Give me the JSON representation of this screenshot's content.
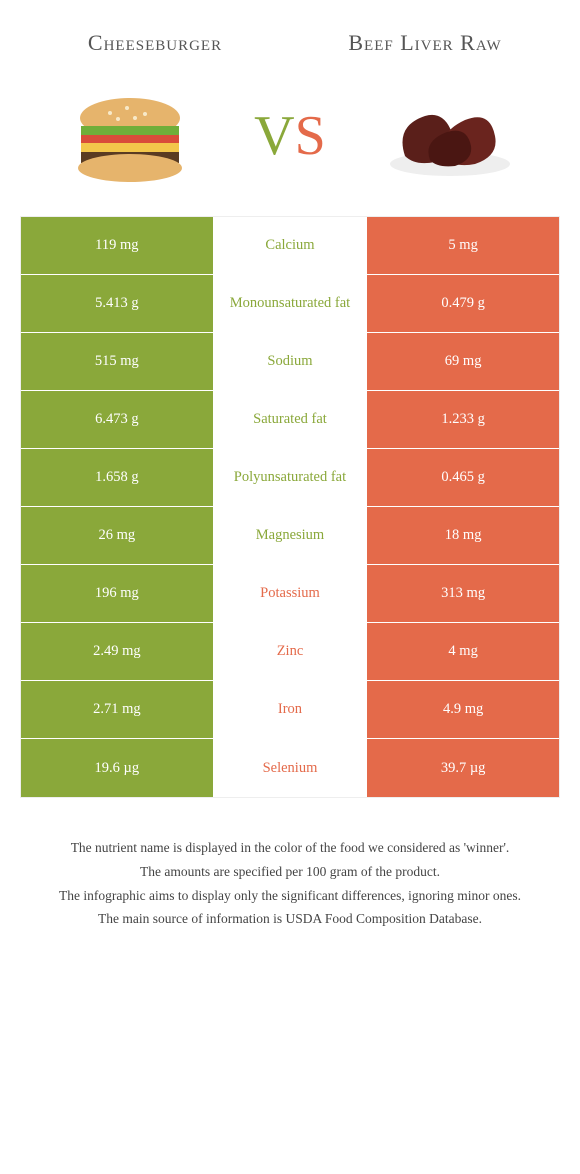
{
  "colors": {
    "left": "#8aa83a",
    "right": "#e46a4a",
    "mid_bg": "#ffffff",
    "row_border": "#ffffff",
    "text_dark": "#333333"
  },
  "header": {
    "left_title": "Cheeseburger",
    "right_title": "Beef Liver Raw",
    "vs_v": "V",
    "vs_s": "S"
  },
  "images": {
    "left_alt": "cheeseburger-illustration",
    "right_alt": "beef-liver-illustration"
  },
  "rows": [
    {
      "left": "119 mg",
      "label": "Calcium",
      "right": "5 mg",
      "winner": "left"
    },
    {
      "left": "5.413 g",
      "label": "Monounsaturated fat",
      "right": "0.479 g",
      "winner": "left"
    },
    {
      "left": "515 mg",
      "label": "Sodium",
      "right": "69 mg",
      "winner": "left"
    },
    {
      "left": "6.473 g",
      "label": "Saturated fat",
      "right": "1.233 g",
      "winner": "left"
    },
    {
      "left": "1.658 g",
      "label": "Polyunsaturated fat",
      "right": "0.465 g",
      "winner": "left"
    },
    {
      "left": "26 mg",
      "label": "Magnesium",
      "right": "18 mg",
      "winner": "left"
    },
    {
      "left": "196 mg",
      "label": "Potassium",
      "right": "313 mg",
      "winner": "right"
    },
    {
      "left": "2.49 mg",
      "label": "Zinc",
      "right": "4 mg",
      "winner": "right"
    },
    {
      "left": "2.71 mg",
      "label": "Iron",
      "right": "4.9 mg",
      "winner": "right"
    },
    {
      "left": "19.6 µg",
      "label": "Selenium",
      "right": "39.7 µg",
      "winner": "right"
    }
  ],
  "footer": {
    "line1": "The nutrient name is displayed in the color of the food we considered as 'winner'.",
    "line2": "The amounts are specified per 100 gram of the product.",
    "line3": "The infographic aims to display only the significant differences, ignoring minor ones.",
    "line4": "The main source of information is USDA Food Composition Database."
  }
}
